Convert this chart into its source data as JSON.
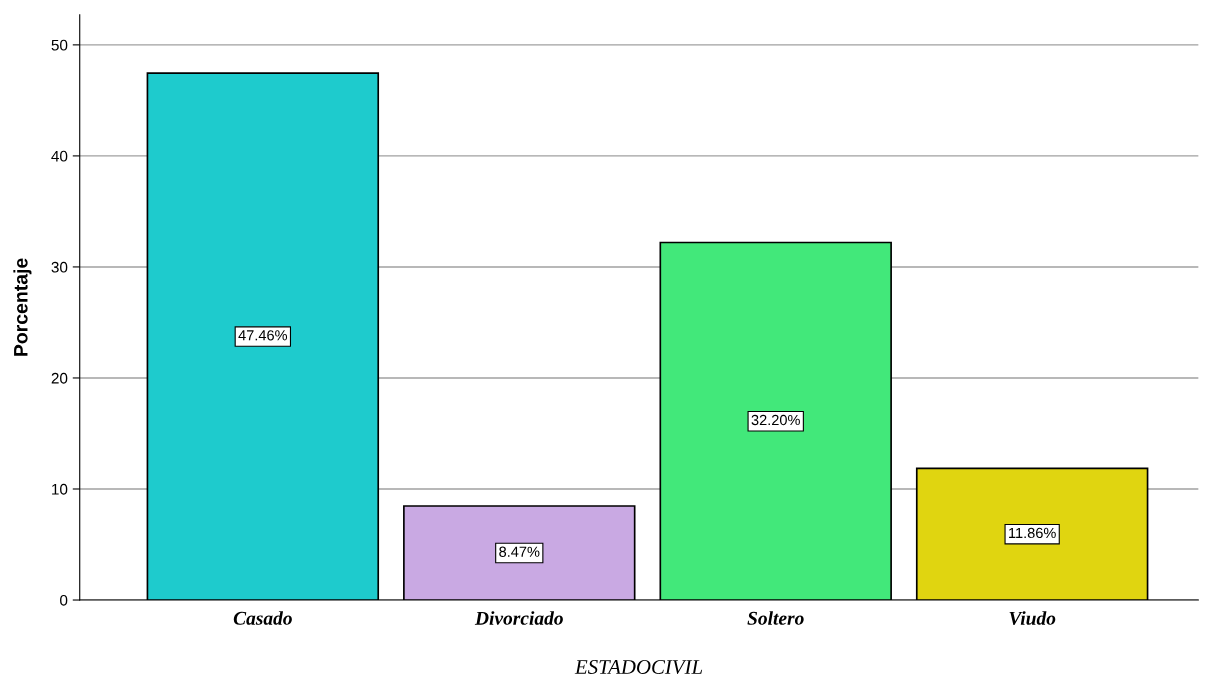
{
  "chart_data": {
    "type": "bar",
    "xlabel": "ESTADOCIVIL",
    "ylabel": "Porcentaje",
    "categories": [
      "Casado",
      "Divorciado",
      "Soltero",
      "Viudo"
    ],
    "values": [
      47.46,
      8.47,
      32.2,
      11.86
    ],
    "colors": [
      "#1ecbcd",
      "#c9a9e3",
      "#42e87a",
      "#e0d510"
    ],
    "value_labels": [
      "47.46%",
      "8.47%",
      "32.20%",
      "11.86%"
    ],
    "ylim": [
      0,
      52.7
    ],
    "yticks": [
      0,
      10,
      20,
      30,
      40,
      50
    ],
    "grid": "y",
    "legend": false
  }
}
